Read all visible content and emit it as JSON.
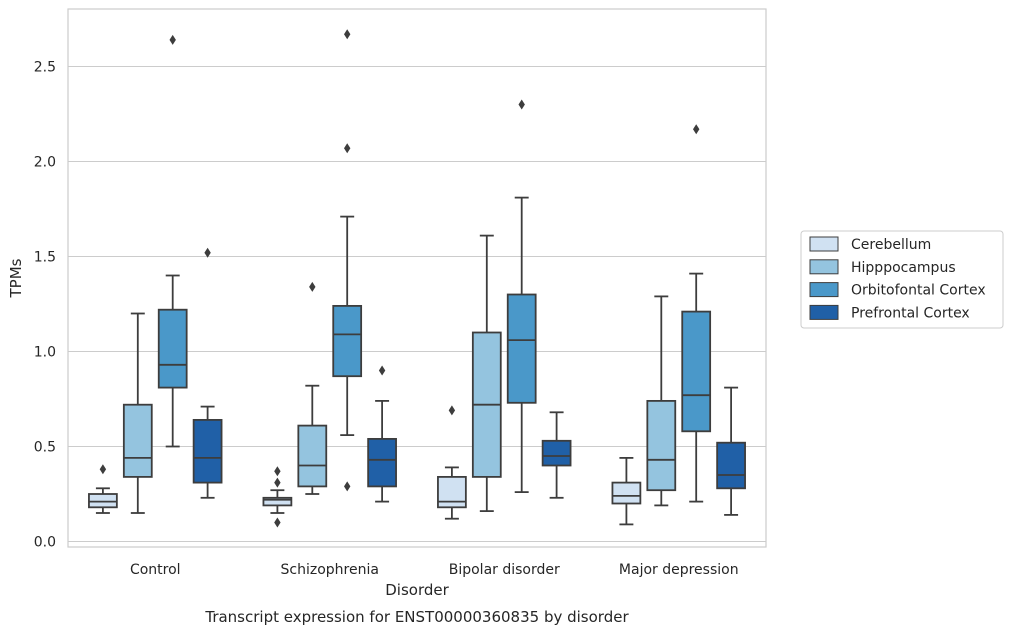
{
  "chart_data": {
    "type": "box",
    "caption": "Transcript expression for ENST00000360835 by disorder",
    "xlabel": "Disorder",
    "ylabel": "TPMs",
    "ylim": [
      -0.03,
      2.8
    ],
    "yticks": [
      "0.0",
      "0.5",
      "1.0",
      "1.5",
      "2.0",
      "2.5"
    ],
    "grid": true,
    "legend_position": "right",
    "categories": [
      "Control",
      "Schizophrenia",
      "Bipolar disorder",
      "Major depression"
    ],
    "series": [
      {
        "name": "Cerebellum",
        "color": "#d0e1f2",
        "boxes": [
          {
            "whisker_low": 0.15,
            "q1": 0.18,
            "median": 0.21,
            "q3": 0.25,
            "whisker_high": 0.28,
            "outliers": [
              0.38
            ]
          },
          {
            "whisker_low": 0.15,
            "q1": 0.19,
            "median": 0.22,
            "q3": 0.23,
            "whisker_high": 0.27,
            "outliers": [
              0.1,
              0.31,
              0.37
            ]
          },
          {
            "whisker_low": 0.12,
            "q1": 0.18,
            "median": 0.21,
            "q3": 0.34,
            "whisker_high": 0.39,
            "outliers": [
              0.69
            ]
          },
          {
            "whisker_low": 0.09,
            "q1": 0.2,
            "median": 0.24,
            "q3": 0.31,
            "whisker_high": 0.44,
            "outliers": []
          }
        ]
      },
      {
        "name": "Hipppocampus",
        "color": "#94c4df",
        "boxes": [
          {
            "whisker_low": 0.15,
            "q1": 0.34,
            "median": 0.44,
            "q3": 0.72,
            "whisker_high": 1.2,
            "outliers": []
          },
          {
            "whisker_low": 0.25,
            "q1": 0.29,
            "median": 0.4,
            "q3": 0.61,
            "whisker_high": 0.82,
            "outliers": [
              1.34
            ]
          },
          {
            "whisker_low": 0.16,
            "q1": 0.34,
            "median": 0.72,
            "q3": 1.1,
            "whisker_high": 1.61,
            "outliers": []
          },
          {
            "whisker_low": 0.19,
            "q1": 0.27,
            "median": 0.43,
            "q3": 0.74,
            "whisker_high": 1.29,
            "outliers": []
          }
        ]
      },
      {
        "name": "Orbitofontal Cortex",
        "color": "#4a98c9",
        "boxes": [
          {
            "whisker_low": 0.5,
            "q1": 0.81,
            "median": 0.93,
            "q3": 1.22,
            "whisker_high": 1.4,
            "outliers": [
              2.64
            ]
          },
          {
            "whisker_low": 0.56,
            "q1": 0.87,
            "median": 1.09,
            "q3": 1.24,
            "whisker_high": 1.71,
            "outliers": [
              0.29,
              2.07,
              2.67
            ]
          },
          {
            "whisker_low": 0.26,
            "q1": 0.73,
            "median": 1.06,
            "q3": 1.3,
            "whisker_high": 1.81,
            "outliers": [
              2.3
            ]
          },
          {
            "whisker_low": 0.21,
            "q1": 0.58,
            "median": 0.77,
            "q3": 1.21,
            "whisker_high": 1.41,
            "outliers": [
              2.17
            ]
          }
        ]
      },
      {
        "name": "Prefrontal Cortex",
        "color": "#2060a7",
        "boxes": [
          {
            "whisker_low": 0.23,
            "q1": 0.31,
            "median": 0.44,
            "q3": 0.64,
            "whisker_high": 0.71,
            "outliers": [
              1.52
            ]
          },
          {
            "whisker_low": 0.21,
            "q1": 0.29,
            "median": 0.43,
            "q3": 0.54,
            "whisker_high": 0.74,
            "outliers": [
              0.9
            ]
          },
          {
            "whisker_low": 0.23,
            "q1": 0.4,
            "median": 0.45,
            "q3": 0.53,
            "whisker_high": 0.68,
            "outliers": []
          },
          {
            "whisker_low": 0.14,
            "q1": 0.28,
            "median": 0.35,
            "q3": 0.52,
            "whisker_high": 0.81,
            "outliers": []
          }
        ]
      }
    ]
  }
}
